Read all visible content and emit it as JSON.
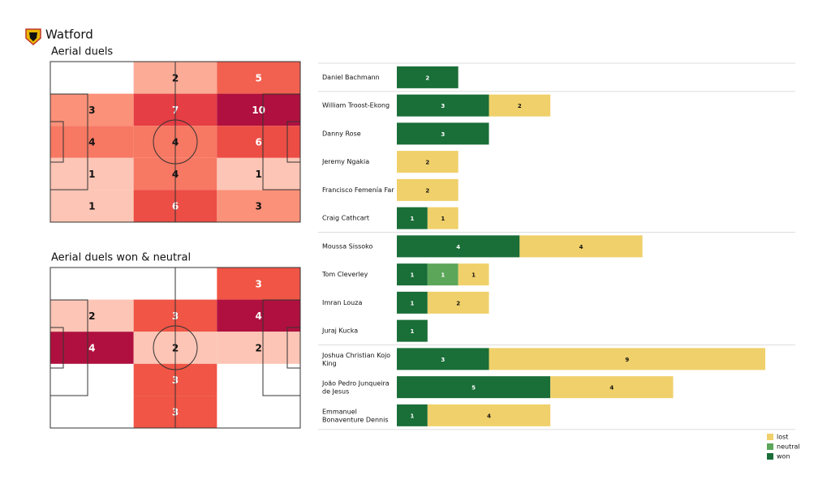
{
  "header": {
    "title": "Watford"
  },
  "chart_data": [
    {
      "type": "heatmap",
      "title": "Aerial duels",
      "grid": [
        [
          null,
          2,
          5
        ],
        [
          3,
          7,
          10
        ],
        [
          4,
          4,
          6
        ],
        [
          1,
          4,
          1
        ],
        [
          1,
          6,
          3
        ]
      ],
      "colormap": [
        "#fdc5b5",
        "#fb8a72",
        "#f05545",
        "#df3344",
        "#b0103f"
      ]
    },
    {
      "type": "heatmap",
      "title": "Aerial duels won & neutral",
      "grid": [
        [
          null,
          null,
          3
        ],
        [
          2,
          3,
          4
        ],
        [
          4,
          2,
          2
        ],
        [
          null,
          3,
          null
        ],
        [
          null,
          3,
          null
        ]
      ],
      "colormap": [
        "#fdc5b5",
        "#fb8a72",
        "#f05545",
        "#df3344",
        "#b0103f"
      ]
    },
    {
      "type": "stacked_barh",
      "categories": [
        "Daniel Bachmann",
        "William Troost-Ekong",
        "Danny Rose",
        "Jeremy Ngakia",
        "Francisco Femenía Far",
        "Craig Cathcart",
        "Moussa Sissoko",
        "Tom Cleverley",
        "Imran Louza",
        "Juraj Kucka",
        "Joshua Christian Kojo\nKing",
        "João Pedro Junqueira\nde Jesus",
        "Emmanuel\nBonaventure Dennis"
      ],
      "series": [
        {
          "name": "won",
          "color": "#1a6e38",
          "values": [
            2,
            3,
            3,
            0,
            0,
            1,
            4,
            1,
            1,
            1,
            3,
            5,
            1
          ]
        },
        {
          "name": "neutral",
          "color": "#5ca65a",
          "values": [
            0,
            0,
            0,
            0,
            0,
            0,
            0,
            1,
            0,
            0,
            0,
            0,
            0
          ]
        },
        {
          "name": "lost",
          "color": "#f0d06a",
          "values": [
            0,
            2,
            0,
            2,
            2,
            1,
            4,
            1,
            2,
            0,
            9,
            4,
            4
          ]
        }
      ],
      "xlim": [
        0,
        12
      ],
      "legend": "lower right"
    }
  ]
}
